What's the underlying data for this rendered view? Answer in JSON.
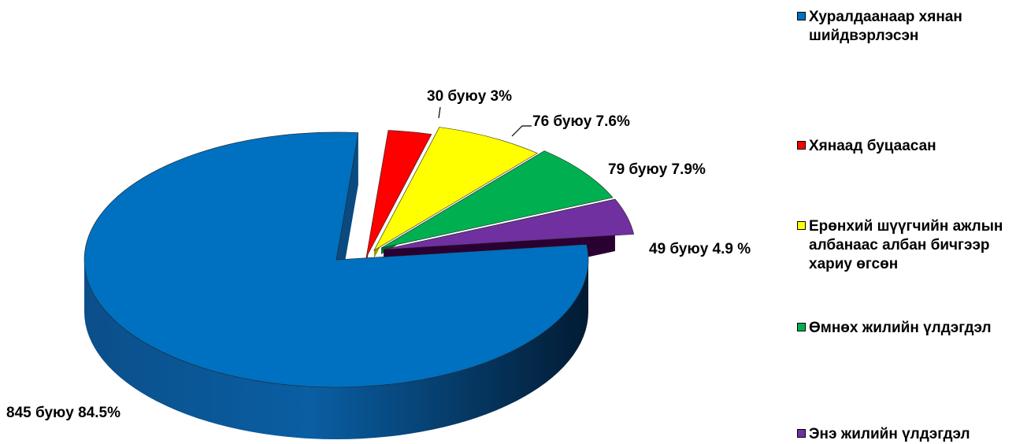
{
  "chart_data": {
    "type": "pie",
    "slices": [
      {
        "name": "Хуралдаанаар хянан шийдвэрлэсэн",
        "value": 845,
        "percent": 84.5,
        "label": "845 буюу 84.5%",
        "color": "#0070C0"
      },
      {
        "name": "Хянаад буцаасан",
        "value": 30,
        "percent": 3,
        "label": "30 буюу  3%",
        "color": "#FF0000"
      },
      {
        "name": "Ерөнхий шүүгчийн ажлын албанаас албан бичгээр хариу өгсөн",
        "value": 76,
        "percent": 7.6,
        "label": "76 буюу 7.6%",
        "color": "#FFFF00"
      },
      {
        "name": "Өмнөх жилийн үлдэгдэл",
        "value": 79,
        "percent": 7.9,
        "label": "79 буюу 7.9%",
        "color": "#00B050"
      },
      {
        "name": "Энэ жилийн үлдэгдэл",
        "value": 49,
        "percent": 4.9,
        "label": "49  буюу 4.9 %",
        "color": "#7030A0"
      }
    ],
    "legend": {
      "position": "right",
      "items": [
        "Хуралдаанаар хянан шийдвэрлэсэн",
        "Хянаад буцаасан",
        "Ерөнхий шүүгчийн ажлын албанаас албан бичгээр хариу өгсөн",
        "Өмнөх жилийн үлдэгдэл",
        "Энэ жилийн үлдэгдэл"
      ]
    },
    "style": "3d-exploded-pie"
  }
}
